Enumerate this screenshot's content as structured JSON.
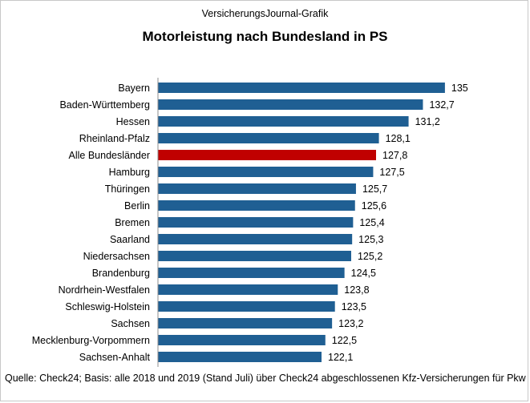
{
  "overline": "VersicherungsJournal-Grafik",
  "source": "Quelle: Check24; Basis: alle 2018 und 2019 (Stand Juli) über Check24 abgeschlossenen Kfz-Versicherungen für Pkw",
  "colors": {
    "bar": "#1f5f93",
    "highlight": "#c00000"
  },
  "chart_data": {
    "type": "bar",
    "orientation": "horizontal",
    "title": "Motorleistung nach Bundesland in PS",
    "xlabel": "",
    "ylabel": "",
    "grid": false,
    "legend": "none",
    "xlim": [
      105,
      135
    ],
    "categories": [
      "Bayern",
      "Baden-Württemberg",
      "Hessen",
      "Rheinland-Pfalz",
      "Alle Bundesländer",
      "Hamburg",
      "Thüringen",
      "Berlin",
      "Bremen",
      "Saarland",
      "Niedersachsen",
      "Brandenburg",
      "Nordrhein-Westfalen",
      "Schleswig-Holstein",
      "Sachsen",
      "Mecklenburg-Vorpommern",
      "Sachsen-Anhalt"
    ],
    "values": [
      135,
      132.7,
      131.2,
      128.1,
      127.8,
      127.5,
      125.7,
      125.6,
      125.4,
      125.3,
      125.2,
      124.5,
      123.8,
      123.5,
      123.2,
      122.5,
      122.1
    ],
    "value_labels": [
      "135",
      "132,7",
      "131,2",
      "128,1",
      "127,8",
      "127,5",
      "125,7",
      "125,6",
      "125,4",
      "125,3",
      "125,2",
      "124,5",
      "123,8",
      "123,5",
      "123,2",
      "122,5",
      "122,1"
    ],
    "highlight_category": "Alle Bundesländer"
  }
}
